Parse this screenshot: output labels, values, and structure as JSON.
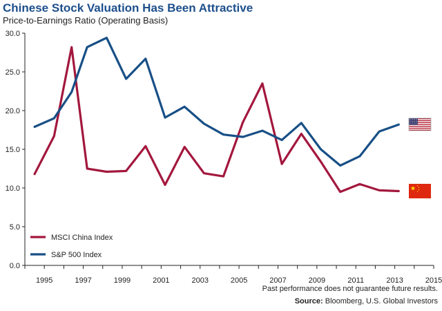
{
  "header": {
    "title": "Chinese Stock Valuation Has Been Attractive",
    "subtitle": "Price-to-Earnings Ratio (Operating Basis)"
  },
  "footer": {
    "note": "Past performance does not guarantee future results.",
    "source_label": "Source:",
    "source_text": "Bloomberg, U.S. Global Investors"
  },
  "colors": {
    "china": "#a3173d",
    "sp500": "#184f86",
    "axis": "#222222"
  },
  "flags": [
    {
      "name": "us-flag-icon",
      "series": "S&P 500 Index"
    },
    {
      "name": "china-flag-icon",
      "series": "MSCI China Index"
    }
  ],
  "chart_data": {
    "type": "line",
    "title": "Chinese Stock Valuation Has Been Attractive",
    "subtitle": "Price-to-Earnings Ratio (Operating Basis)",
    "xlabel": "",
    "ylabel": "",
    "xlim": [
      1994,
      2015
    ],
    "ylim": [
      0,
      30
    ],
    "x_ticks": [
      1995,
      1997,
      1999,
      2001,
      2003,
      2005,
      2007,
      2009,
      2011,
      2013,
      2015
    ],
    "y_ticks": [
      0.0,
      5.0,
      10.0,
      15.0,
      20.0,
      25.0,
      30.0
    ],
    "y_tick_labels": [
      "0.0",
      "5.0",
      "10.0",
      "15.0",
      "20.0",
      "25.0",
      "30.0"
    ],
    "grid": false,
    "legend_position": "bottom-left",
    "series": [
      {
        "name": "MSCI China Index",
        "color": "#a3173d",
        "x": [
          1994.5,
          1995.5,
          1996.4,
          1997.2,
          1998.2,
          1999.2,
          2000.2,
          2001.2,
          2002.2,
          2003.2,
          2004.2,
          2005.2,
          2006.2,
          2007.2,
          2008.2,
          2009.2,
          2010.2,
          2011.2,
          2012.2,
          2013.2
        ],
        "values": [
          11.8,
          16.7,
          28.2,
          12.5,
          12.1,
          12.2,
          15.4,
          10.4,
          15.3,
          11.9,
          11.5,
          18.5,
          23.5,
          13.1,
          17.0,
          13.4,
          9.5,
          10.5,
          9.7,
          9.6
        ]
      },
      {
        "name": "S&P 500 Index",
        "color": "#184f86",
        "x": [
          1994.5,
          1995.5,
          1996.4,
          1997.2,
          1998.2,
          1999.2,
          2000.2,
          2001.2,
          2002.2,
          2003.2,
          2004.2,
          2005.2,
          2006.2,
          2007.2,
          2008.2,
          2009.2,
          2010.2,
          2011.2,
          2012.2,
          2013.2
        ],
        "values": [
          17.9,
          19.0,
          22.4,
          28.2,
          29.4,
          24.1,
          26.7,
          19.1,
          20.5,
          18.3,
          16.9,
          16.6,
          17.4,
          16.2,
          18.4,
          15.0,
          12.9,
          14.1,
          17.3,
          18.2
        ]
      }
    ]
  }
}
